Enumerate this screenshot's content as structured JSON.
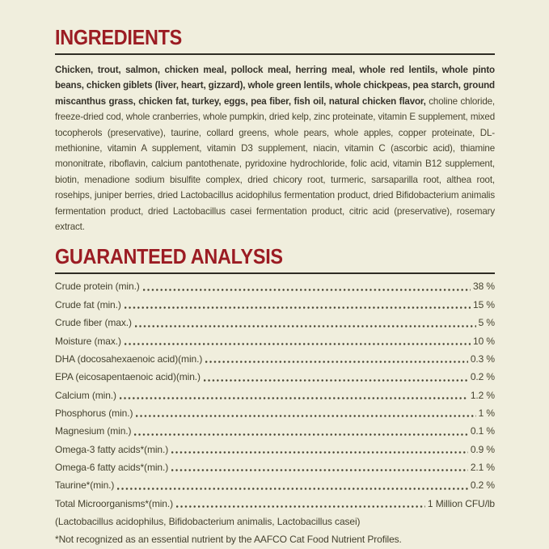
{
  "colors": {
    "background": "#f0eedd",
    "heading_red": "#9b1c23",
    "rule": "#2e2c24",
    "body_text": "#45422f",
    "bold_text": "#35322a"
  },
  "ingredients": {
    "heading": "INGREDIENTS",
    "bold_text": "Chicken, trout, salmon, chicken meal, pollock meal, herring meal, whole red lentils, whole pinto beans, chicken giblets (liver, heart, gizzard), whole green lentils, whole chickpeas, pea starch, ground miscanthus grass, chicken fat, turkey, eggs, pea fiber, fish oil, natural chicken flavor,",
    "regular_text": " choline chloride, freeze-dried cod, whole cranberries, whole pumpkin, dried kelp, zinc proteinate, vitamin E supplement, mixed tocopherols (preservative), taurine, collard greens, whole pears, whole apples, copper proteinate, DL-methionine, vitamin A supplement, vitamin D3 supplement, niacin, vitamin C (ascorbic acid), thiamine mononitrate, riboflavin, calcium pantothenate, pyridoxine hydrochloride, folic acid, vitamin B12 supplement, biotin, menadione sodium bisulfite complex, dried chicory root, turmeric, sarsaparilla root, althea root, rosehips, juniper berries, dried Lactobacillus acidophilus fermentation product, dried Bifidobacterium animalis fermentation product, dried Lactobacillus casei fermentation product, citric acid (preservative), rosemary extract."
  },
  "guaranteed_analysis": {
    "heading": "GUARANTEED ANALYSIS",
    "rows": [
      {
        "name": "Crude protein (min.)",
        "value": "38 %"
      },
      {
        "name": "Crude fat (min.)",
        "value": "15 %"
      },
      {
        "name": "Crude fiber (max.)",
        "value": "5 %"
      },
      {
        "name": "Moisture (max.)",
        "value": "10 %"
      },
      {
        "name": "DHA (docosahexaenoic acid)(min.)",
        "value": "0.3 %"
      },
      {
        "name": "EPA (eicosapentaenoic acid)(min.)",
        "value": "0.2 %"
      },
      {
        "name": "Calcium (min.)",
        "value": "1.2 %"
      },
      {
        "name": "Phosphorus (min.)",
        "value": "1 %"
      },
      {
        "name": "Magnesium (min.)",
        "value": "0.1 %"
      },
      {
        "name": "Omega-3 fatty acids*(min.)",
        "value": "0.9 %"
      },
      {
        "name": "Omega-6 fatty acids*(min.)",
        "value": "2.1 %"
      },
      {
        "name": "Taurine*(min.)",
        "value": "0.2 %"
      },
      {
        "name": "Total Microorganisms*(min.)",
        "value": "1 Million CFU/lb"
      }
    ],
    "microorganisms_note": "(Lactobacillus acidophilus, Bifidobacterium animalis, Lactobacillus casei)",
    "footnote": "*Not recognized as an essential nutrient by the AAFCO Cat Food Nutrient Profiles."
  }
}
